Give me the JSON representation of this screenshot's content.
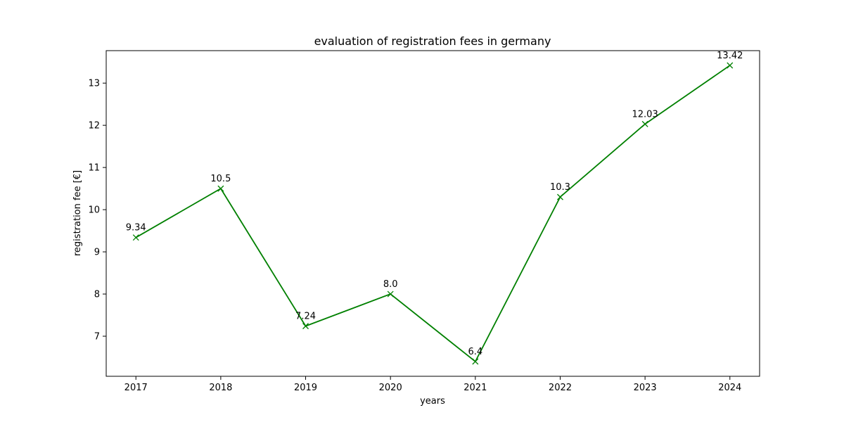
{
  "chart_data": {
    "type": "line",
    "title": "evaluation of registration fees in germany",
    "xlabel": "years",
    "ylabel": "registration fee [€]",
    "x": [
      2017,
      2018,
      2019,
      2020,
      2021,
      2022,
      2023,
      2024
    ],
    "series": [
      {
        "values": [
          9.34,
          10.5,
          7.24,
          8.0,
          6.4,
          10.3,
          12.03,
          13.42
        ],
        "color": "#008000",
        "marker": "x",
        "data_labels": [
          "9.34",
          "10.5",
          "7.24",
          "8.0",
          "6.4",
          "10.3",
          "12.03",
          "13.42"
        ]
      }
    ],
    "x_ticks": [
      "2017",
      "2018",
      "2019",
      "2020",
      "2021",
      "2022",
      "2023",
      "2024"
    ],
    "y_ticks": [
      "7",
      "8",
      "9",
      "10",
      "11",
      "12",
      "13"
    ],
    "xlim": [
      2016.65,
      2024.35
    ],
    "ylim": [
      6.05,
      13.77
    ],
    "grid": false,
    "legend": "none"
  }
}
